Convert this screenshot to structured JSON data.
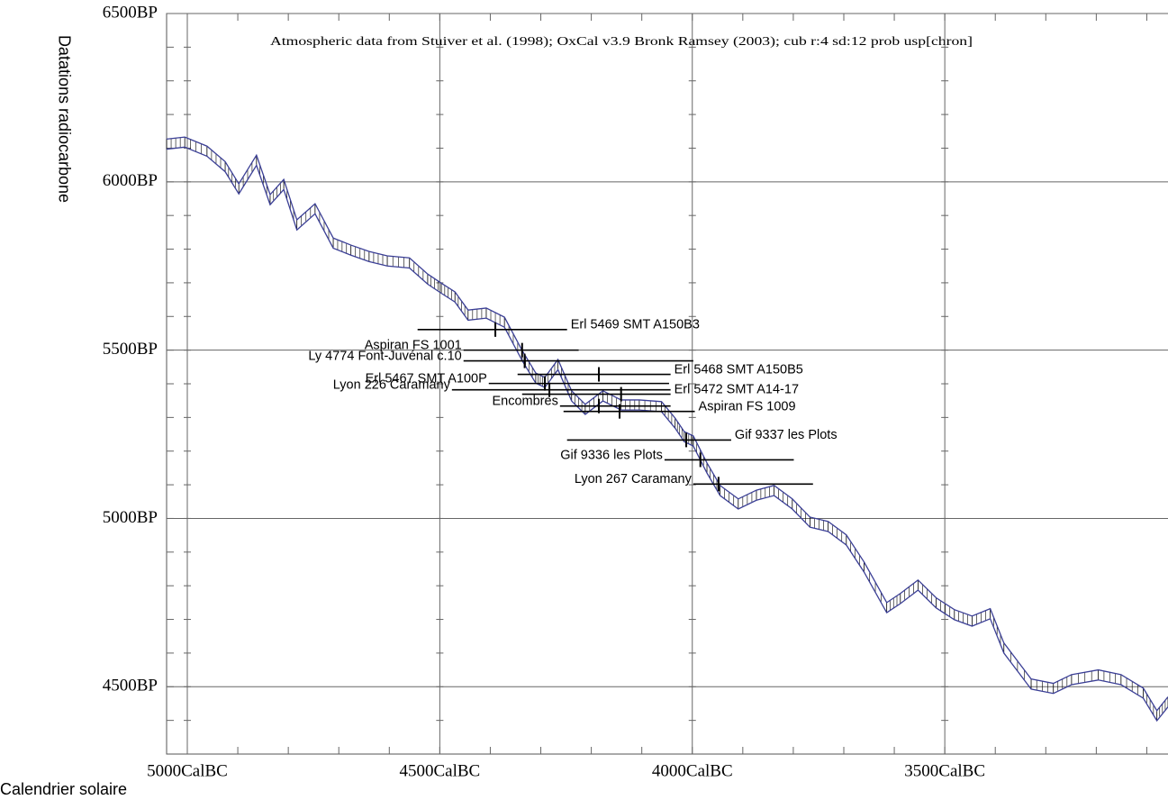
{
  "chart_data": {
    "type": "calibration",
    "annotation": "Atmospheric data from Stuiver et al. (1998); OxCal v3.9 Bronk Ramsey (2003); cub r:4 sd:12 prob usp[chron]",
    "ylabel": "Datations radiocarbone",
    "xlabel": "Calendrier solaire",
    "xlim": [
      5041,
      3058
    ],
    "ylim": [
      4300,
      6500
    ],
    "xticks": [
      {
        "value": 5000,
        "label": "5000CalBC"
      },
      {
        "value": 4500,
        "label": "4500CalBC"
      },
      {
        "value": 4000,
        "label": "4000CalBC"
      },
      {
        "value": 3500,
        "label": "3500CalBC"
      }
    ],
    "yticks": [
      {
        "value": 4500,
        "label": "4500BP"
      },
      {
        "value": 5000,
        "label": "5000BP"
      },
      {
        "value": 5500,
        "label": "5500BP"
      },
      {
        "value": 6000,
        "label": "6000BP"
      },
      {
        "value": 6500,
        "label": "6500BP"
      }
    ],
    "xminorticks": [
      5000,
      4900,
      4800,
      4700,
      4600,
      4500,
      4400,
      4300,
      4200,
      4100,
      4000,
      3900,
      3800,
      3700,
      3600,
      3500,
      3400,
      3300,
      3200,
      3100
    ],
    "yminorticks": [
      4400,
      4500,
      4600,
      4700,
      4800,
      4900,
      5000,
      5100,
      5200,
      5300,
      5400,
      5500,
      5600,
      5700,
      5800,
      5900,
      6000,
      6100,
      6200,
      6300,
      6400
    ],
    "grid": true,
    "curve": {
      "color": "#3b3f96",
      "band": 15,
      "x": [
        5041,
        5005,
        4961,
        4925,
        4898,
        4863,
        4836,
        4809,
        4783,
        4747,
        4711,
        4676,
        4640,
        4604,
        4560,
        4524,
        4497,
        4470,
        4444,
        4408,
        4372,
        4337,
        4310,
        4292,
        4266,
        4239,
        4212,
        4177,
        4141,
        4105,
        4061,
        4034,
        4016,
        3998,
        3971,
        3945,
        3909,
        3873,
        3838,
        3802,
        3767,
        3731,
        3695,
        3660,
        3615,
        3588,
        3553,
        3517,
        3481,
        3446,
        3410,
        3383,
        3329,
        3285,
        3249,
        3196,
        3151,
        3107,
        3080,
        3058
      ],
      "values": [
        6112,
        6118,
        6091,
        6045,
        5979,
        6064,
        5947,
        5992,
        5872,
        5920,
        5818,
        5797,
        5778,
        5765,
        5759,
        5711,
        5684,
        5658,
        5604,
        5610,
        5583,
        5484,
        5417,
        5404,
        5457,
        5364,
        5324,
        5364,
        5337,
        5337,
        5332,
        5283,
        5243,
        5230,
        5150,
        5083,
        5043,
        5069,
        5083,
        5043,
        4989,
        4976,
        4936,
        4856,
        4735,
        4762,
        4802,
        4749,
        4714,
        4695,
        4717,
        4615,
        4508,
        4495,
        4521,
        4535,
        4521,
        4481,
        4414,
        4455
      ]
    },
    "samples": [
      {
        "name": "Erl 5469 SMT A150B3",
        "bp": 5561,
        "from": 4544,
        "to": 4248,
        "at": 4390,
        "side": "right"
      },
      {
        "name": "Aspiran FS 1001",
        "bp": 5500,
        "from": 4453,
        "to": 4225,
        "at": 4337,
        "side": "left"
      },
      {
        "name": "Ly 4774 Font-Juvénal c.10",
        "bp": 5468,
        "from": 4453,
        "to": 3998,
        "at": 4332,
        "side": "left"
      },
      {
        "name": "Erl 5468 SMT A150B5",
        "bp": 5428,
        "from": 4346,
        "to": 4043,
        "at": 4185,
        "side": "right"
      },
      {
        "name": "Erl 5467 SMT A100P",
        "bp": 5401,
        "from": 4403,
        "to": 4046,
        "at": 4292,
        "side": "left"
      },
      {
        "name": "Lyon 226 Caramany",
        "bp": 5382,
        "from": 4476,
        "to": 4043,
        "at": 4283,
        "side": "left"
      },
      {
        "name": "Erl 5472 SMT A14-17",
        "bp": 5369,
        "from": 4337,
        "to": 4043,
        "at": 4141,
        "side": "right"
      },
      {
        "name": "Encombres",
        "bp": 5334,
        "from": 4262,
        "to": 4043,
        "at": 4185,
        "side": "left"
      },
      {
        "name": "Aspiran FS 1009",
        "bp": 5318,
        "from": 4255,
        "to": 3995,
        "at": 4144,
        "side": "right"
      },
      {
        "name": "Gif 9337 les Plots",
        "bp": 5233,
        "from": 4248,
        "to": 3923,
        "at": 4012,
        "side": "right"
      },
      {
        "name": "Gif 9336 les Plots",
        "bp": 5174,
        "from": 4055,
        "to": 3799,
        "at": 3984,
        "side": "left"
      },
      {
        "name": "Lyon 267 Caramany",
        "bp": 5102,
        "from": 3998,
        "to": 3761,
        "at": 3948,
        "side": "left"
      }
    ]
  }
}
